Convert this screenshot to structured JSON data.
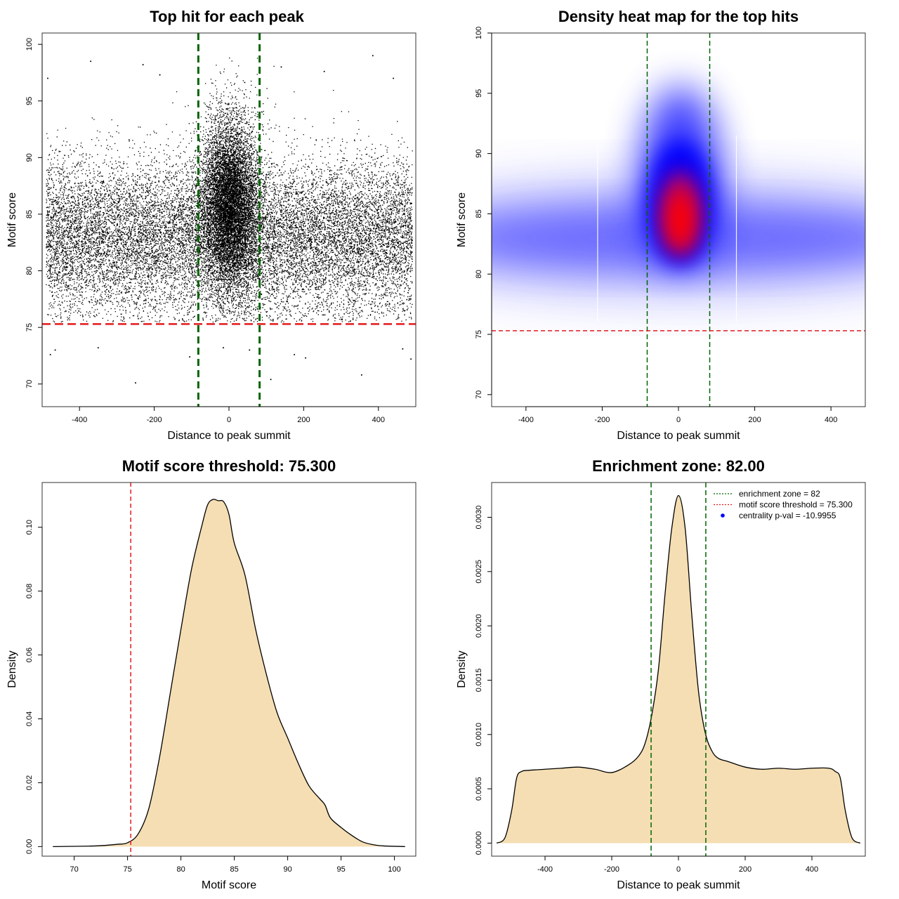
{
  "chart_data": [
    {
      "type": "scatter",
      "title": "Top hit for each peak",
      "xlabel": "Distance to peak summit",
      "ylabel": "Motif score",
      "xlim": [
        -500,
        500
      ],
      "ylim": [
        68,
        101
      ],
      "xticks": [
        -400,
        -200,
        0,
        200,
        400
      ],
      "yticks": [
        70,
        75,
        80,
        85,
        90,
        95,
        100
      ],
      "point_cloud": {
        "background": {
          "x_range": [
            -490,
            490
          ],
          "y_mean": 83.0,
          "y_sd": 3.4,
          "count": 16000
        },
        "central": {
          "x_mean": 0,
          "x_sd": 38,
          "y_mean": 86.0,
          "y_sd": 3.8,
          "count": 9000
        },
        "outliers": [
          {
            "x": -485,
            "y": 97.0
          },
          {
            "x": -370,
            "y": 98.5
          },
          {
            "x": -230,
            "y": 98.2
          },
          {
            "x": -185,
            "y": 97.3
          },
          {
            "x": 140,
            "y": 98.0
          },
          {
            "x": 255,
            "y": 97.6
          },
          {
            "x": 385,
            "y": 99.0
          },
          {
            "x": 440,
            "y": 97.0
          },
          {
            "x": -478,
            "y": 72.6
          },
          {
            "x": -465,
            "y": 73.0
          },
          {
            "x": -350,
            "y": 73.2
          },
          {
            "x": -250,
            "y": 70.1
          },
          {
            "x": -105,
            "y": 72.4
          },
          {
            "x": -15,
            "y": 73.2
          },
          {
            "x": 55,
            "y": 73.0
          },
          {
            "x": 112,
            "y": 70.4
          },
          {
            "x": 175,
            "y": 72.6
          },
          {
            "x": 205,
            "y": 72.3
          },
          {
            "x": 355,
            "y": 70.8
          },
          {
            "x": 465,
            "y": 73.1
          },
          {
            "x": 487,
            "y": 72.2
          }
        ]
      },
      "vlines": {
        "values": [
          -82,
          82
        ],
        "color": "#006400"
      },
      "hline": {
        "value": 75.3,
        "color": "#e41a1c"
      }
    },
    {
      "type": "heatmap",
      "title": "Density heat map for the top hits",
      "xlabel": "Distance to peak summit",
      "ylabel": "Motif score",
      "xlim": [
        -490,
        490
      ],
      "ylim": [
        69,
        100
      ],
      "xticks": [
        -400,
        -200,
        0,
        200,
        400
      ],
      "yticks": [
        70,
        75,
        80,
        85,
        90,
        95,
        100
      ],
      "colors": [
        "#ffffff",
        "#0000ff",
        "#ff0000"
      ],
      "density_center": {
        "x": 5,
        "y": 85.0
      },
      "vlines": {
        "values": [
          -82,
          82
        ],
        "color": "#006400"
      },
      "hline": {
        "value": 75.3,
        "color": "#e41a1c"
      }
    },
    {
      "type": "area",
      "title": "Motif score threshold: 75.300",
      "xlabel": "Motif score",
      "ylabel": "Density",
      "xlim": [
        67,
        102
      ],
      "ylim": [
        -0.003,
        0.114
      ],
      "xticks": [
        70,
        75,
        80,
        85,
        90,
        95,
        100
      ],
      "yticks": [
        0.0,
        0.02,
        0.04,
        0.06,
        0.08,
        0.1
      ],
      "ytick_labels": [
        "0.00",
        "0.02",
        "0.04",
        "0.06",
        "0.08",
        "0.10"
      ],
      "x": [
        68.0,
        72.0,
        74.0,
        75.0,
        76.0,
        77.0,
        78.0,
        79.0,
        80.0,
        81.0,
        82.0,
        82.5,
        83.0,
        83.5,
        84.0,
        84.5,
        85.0,
        86.0,
        87.0,
        88.0,
        89.0,
        90.0,
        91.0,
        92.0,
        93.0,
        93.5,
        94.0,
        95.0,
        96.0,
        97.0,
        98.0,
        99.0,
        101.0
      ],
      "y": [
        0.0,
        0.0002,
        0.0007,
        0.0012,
        0.004,
        0.012,
        0.028,
        0.048,
        0.068,
        0.087,
        0.101,
        0.107,
        0.1087,
        0.1083,
        0.108,
        0.104,
        0.095,
        0.085,
        0.068,
        0.054,
        0.042,
        0.034,
        0.026,
        0.019,
        0.015,
        0.013,
        0.009,
        0.006,
        0.0035,
        0.0015,
        0.0006,
        0.0002,
        0.0
      ],
      "fill": "#f5deb3",
      "vline": {
        "value": 75.3,
        "color": "#e41a1c"
      }
    },
    {
      "type": "area",
      "title": "Enrichment zone: 82.00",
      "xlabel": "Distance to peak summit",
      "ylabel": "Density",
      "xlim": [
        -560,
        560
      ],
      "ylim": [
        -0.00012,
        0.00332
      ],
      "xticks": [
        -400,
        -200,
        0,
        200,
        400
      ],
      "yticks": [
        0.0,
        0.0005,
        0.001,
        0.0015,
        0.002,
        0.0025,
        0.003
      ],
      "ytick_labels": [
        "0.0000",
        "0.0005",
        "0.0010",
        "0.0015",
        "0.0020",
        "0.0025",
        "0.0030"
      ],
      "x": [
        -545,
        -520,
        -500,
        -485,
        -470,
        -450,
        -400,
        -350,
        -300,
        -250,
        -200,
        -150,
        -120,
        -100,
        -80,
        -60,
        -40,
        -20,
        0,
        20,
        40,
        60,
        80,
        100,
        120,
        150,
        200,
        250,
        300,
        350,
        400,
        450,
        470,
        485,
        500,
        520,
        545
      ],
      "y": [
        0.0,
        5e-05,
        0.0003,
        0.0006,
        0.00066,
        0.00067,
        0.00068,
        0.00069,
        0.0007,
        0.00068,
        0.00065,
        0.00072,
        0.0008,
        0.00092,
        0.00118,
        0.0016,
        0.0023,
        0.0029,
        0.0032,
        0.0029,
        0.0021,
        0.0014,
        0.00102,
        0.00085,
        0.00078,
        0.00075,
        0.0007,
        0.00068,
        0.00069,
        0.00068,
        0.00069,
        0.00069,
        0.00066,
        0.0006,
        0.0003,
        5e-05,
        0.0
      ],
      "fill": "#f5deb3",
      "vlines": {
        "values": [
          -82,
          82
        ],
        "color": "#006400"
      },
      "legend": {
        "position": "top-right",
        "items": [
          {
            "label": "enrichment zone = 82",
            "color": "#006400",
            "style": "dotted-line"
          },
          {
            "label": "motif score threshold = 75.300",
            "color": "#e41a1c",
            "style": "dotted-line"
          },
          {
            "label": "centrality p-val = -10.9955",
            "color": "#0000ff",
            "style": "point"
          }
        ]
      }
    }
  ]
}
